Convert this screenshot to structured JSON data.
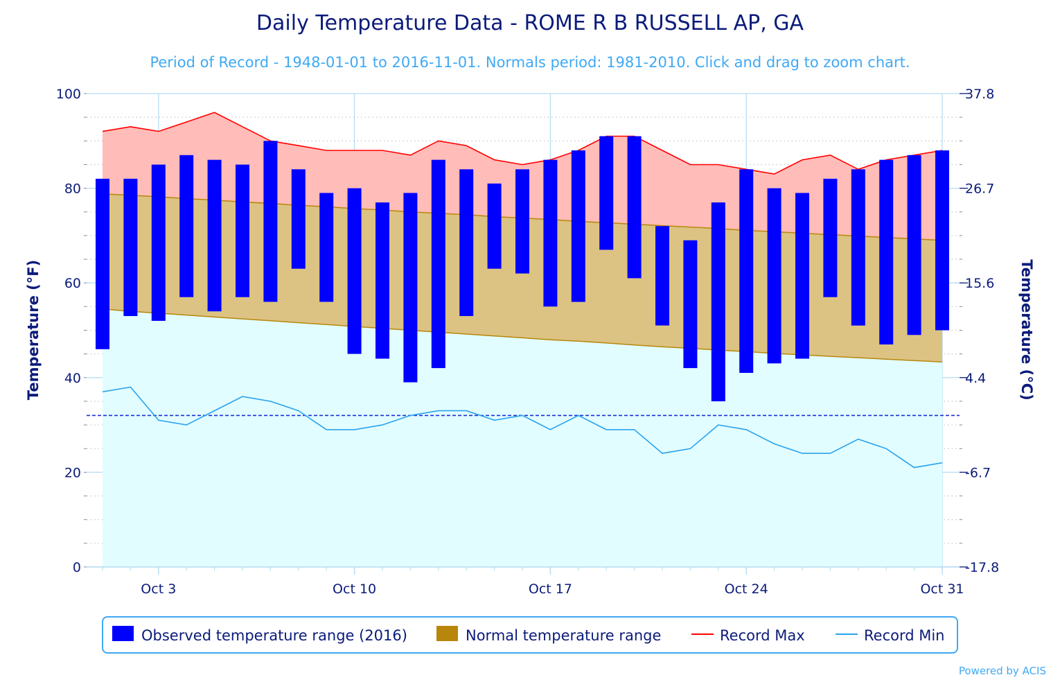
{
  "chart_data": {
    "type": "bar",
    "title": "Daily Temperature Data - ROME R B RUSSELL AP, GA",
    "subtitle": "Period of Record - 1948-01-01 to 2016-11-01. Normals period: 1981-2010. Click and drag to zoom chart.",
    "ylabel": "Temperature (°F)",
    "ylabel_right": "Temperature (°C)",
    "ylim": [
      0,
      100
    ],
    "yticks": [
      "0",
      "20",
      "40",
      "60",
      "80",
      "100"
    ],
    "yticks_right": [
      "-17.8",
      "-6.7",
      "4.4",
      "15.6",
      "26.7",
      "37.8"
    ],
    "xtick_labels": [
      "Oct 3",
      "Oct 10",
      "Oct 17",
      "Oct 24",
      "Oct 31"
    ],
    "xtick_days": [
      3,
      10,
      17,
      24,
      31
    ],
    "days": [
      1,
      2,
      3,
      4,
      5,
      6,
      7,
      8,
      9,
      10,
      11,
      12,
      13,
      14,
      15,
      16,
      17,
      18,
      19,
      20,
      21,
      22,
      23,
      24,
      25,
      26,
      27,
      28,
      29,
      30,
      31
    ],
    "freezing_line": 32,
    "grid": true,
    "legend_position": "bottom",
    "series": [
      {
        "name": "Observed temperature range (2016)",
        "color": "#0000ff",
        "low": [
          46,
          53,
          52,
          57,
          54,
          57,
          56,
          63,
          56,
          45,
          44,
          39,
          42,
          53,
          63,
          62,
          55,
          56,
          67,
          61,
          51,
          42,
          35,
          41,
          43,
          44,
          57,
          51,
          47,
          49,
          50
        ],
        "high": [
          82,
          82,
          85,
          87,
          86,
          85,
          90,
          84,
          79,
          80,
          77,
          79,
          86,
          84,
          81,
          84,
          86,
          88,
          91,
          91,
          72,
          69,
          77,
          84,
          80,
          79,
          82,
          84,
          86,
          87,
          88
        ]
      },
      {
        "name": "Normal temperature range",
        "color": "#b8860b",
        "low": [
          54.5,
          54.0,
          53.6,
          53.2,
          52.8,
          52.4,
          52.0,
          51.6,
          51.2,
          50.8,
          50.4,
          50.0,
          49.6,
          49.2,
          48.8,
          48.4,
          48.0,
          47.7,
          47.3,
          46.9,
          46.5,
          46.2,
          45.8,
          45.5,
          45.1,
          44.8,
          44.5,
          44.2,
          43.9,
          43.6,
          43.3
        ],
        "high": [
          78.8,
          78.5,
          78.2,
          77.8,
          77.5,
          77.1,
          76.8,
          76.4,
          76.1,
          75.7,
          75.4,
          75.0,
          74.7,
          74.4,
          74.0,
          73.7,
          73.4,
          73.0,
          72.7,
          72.4,
          72.1,
          71.8,
          71.5,
          71.1,
          70.8,
          70.5,
          70.2,
          69.9,
          69.6,
          69.3,
          69.0
        ]
      },
      {
        "name": "Record Max",
        "color": "#ff0000",
        "values": [
          92,
          93,
          92,
          94,
          96,
          93,
          90,
          89,
          88,
          88,
          88,
          87,
          90,
          89,
          86,
          85,
          86,
          88,
          91,
          91,
          88,
          85,
          85,
          84,
          83,
          86,
          87,
          84,
          86,
          87,
          88
        ]
      },
      {
        "name": "Record Min",
        "color": "#29a3ef",
        "values": [
          37,
          38,
          31,
          30,
          33,
          36,
          35,
          33,
          29,
          29,
          30,
          32,
          33,
          33,
          31,
          32,
          29,
          32,
          29,
          29,
          24,
          25,
          30,
          29,
          26,
          24,
          24,
          27,
          25,
          21,
          22
        ]
      }
    ]
  },
  "credit": "Powered by ACIS"
}
